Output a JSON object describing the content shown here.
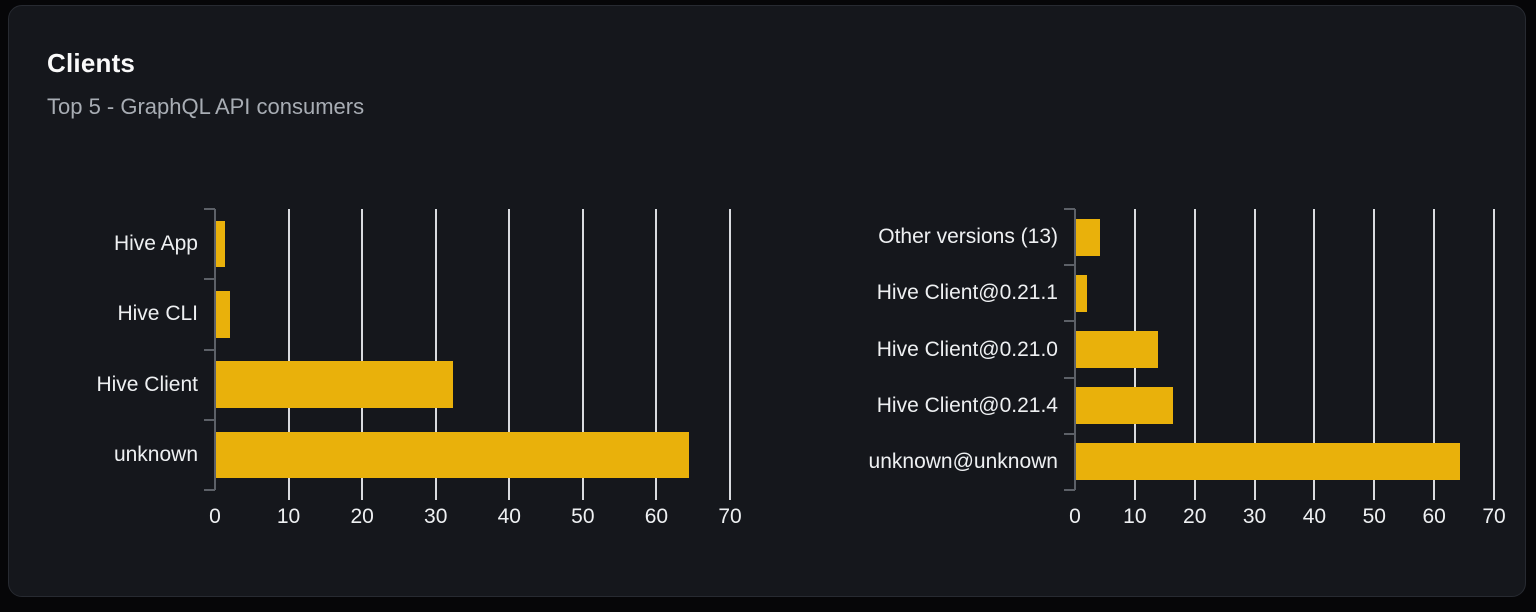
{
  "card": {
    "title": "Clients",
    "subtitle": "Top 5 - GraphQL API consumers"
  },
  "colors": {
    "bar": "#e9b10b",
    "grid": "#d9dbdf",
    "axis": "#5c6067",
    "text": "#eef0f2",
    "card_background": "#15171c",
    "page_background": "#060608"
  },
  "chart_data": [
    {
      "type": "bar",
      "orientation": "horizontal",
      "title": "",
      "xlabel": "",
      "ylabel": "",
      "categories": [
        "Hive App",
        "Hive CLI",
        "Hive Client",
        "unknown"
      ],
      "values": [
        1.4,
        2,
        32.3,
        64.4
      ],
      "xticks": [
        0,
        10,
        20,
        30,
        40,
        50,
        60,
        70
      ],
      "xlim": [
        0,
        70
      ],
      "grid": true,
      "legend": false,
      "bar_color": "#e9b10b"
    },
    {
      "type": "bar",
      "orientation": "horizontal",
      "title": "",
      "xlabel": "",
      "ylabel": "",
      "categories": [
        "Other versions (13)",
        "Hive Client@0.21.1",
        "Hive Client@0.21.0",
        "Hive Client@0.21.4",
        "unknown@unknown"
      ],
      "values": [
        4.2,
        2,
        13.8,
        16.3,
        64.3
      ],
      "xticks": [
        0,
        10,
        20,
        30,
        40,
        50,
        60,
        70
      ],
      "xlim": [
        0,
        70
      ],
      "grid": true,
      "legend": false,
      "bar_color": "#e9b10b"
    }
  ]
}
